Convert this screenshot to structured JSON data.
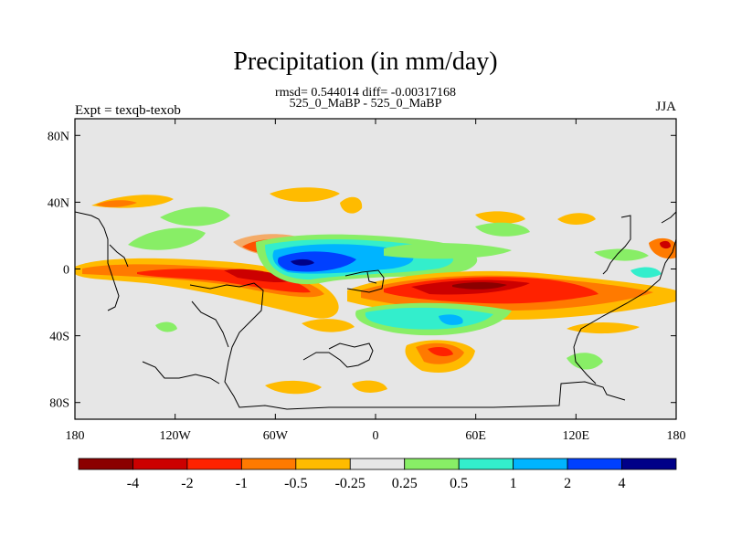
{
  "chart_data": {
    "type": "contour-map",
    "title": "Precipitation (in mm/day)",
    "subtitle_line1": "rmsd= 0.544014 diff= -0.00317168",
    "subtitle_line2": "525_0_MaBP - 525_0_MaBP",
    "left_label": "Expt = texqb-texob",
    "right_label": "JJA",
    "lon_ticks": [
      "180",
      "120W",
      "60W",
      "0",
      "60E",
      "120E",
      "180"
    ],
    "lat_ticks": [
      "80N",
      "40N",
      "0",
      "40S",
      "80S"
    ],
    "lon_range": [
      -180,
      180
    ],
    "lat_range": [
      -90,
      90
    ],
    "colorbar": {
      "levels": [
        "-4",
        "-2",
        "-1",
        "-0.5",
        "-0.25",
        "0.25",
        "0.5",
        "1",
        "2",
        "4"
      ],
      "colors": [
        "#8b0000",
        "#cc0000",
        "#ff2200",
        "#ff7a00",
        "#ffbb00",
        "#e6e6e6",
        "#88ee66",
        "#33eecc",
        "#00b4ff",
        "#0040ff",
        "#000088"
      ]
    }
  }
}
